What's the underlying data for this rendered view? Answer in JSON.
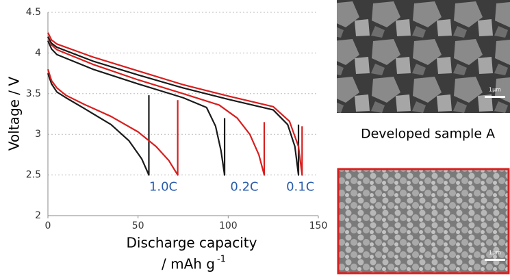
{
  "chart_data": {
    "type": "line",
    "y_label": "Voltage / V",
    "x_label": "Discharge capacity",
    "x_unit": "/ mAh g",
    "x_unit_superscript": "-1",
    "xlim": [
      0,
      150
    ],
    "xticks": [
      0,
      50,
      100,
      150
    ],
    "ylim": [
      2,
      4.5
    ],
    "yticks": [
      2,
      2.5,
      3,
      3.5,
      4,
      4.5
    ],
    "grid": true,
    "series": [
      {
        "color": "#1a1a1a",
        "x": [
          0,
          2,
          5,
          10,
          20,
          35,
          45,
          52,
          56,
          56
        ],
        "values": [
          3.75,
          3.62,
          3.52,
          3.45,
          3.32,
          3.12,
          2.92,
          2.7,
          2.5,
          3.48
        ]
      },
      {
        "color": "#d81e1e",
        "x": [
          0,
          2,
          5,
          10,
          20,
          35,
          50,
          60,
          67,
          72,
          72
        ],
        "values": [
          3.8,
          3.66,
          3.57,
          3.48,
          3.37,
          3.22,
          3.03,
          2.85,
          2.68,
          2.5,
          3.42
        ]
      },
      {
        "color": "#1a1a1a",
        "x": [
          0,
          2,
          5,
          25,
          50,
          75,
          88,
          93,
          96,
          98,
          98
        ],
        "values": [
          4.15,
          4.05,
          3.98,
          3.8,
          3.62,
          3.45,
          3.33,
          3.1,
          2.8,
          2.5,
          3.2
        ]
      },
      {
        "color": "#d81e1e",
        "x": [
          0,
          2,
          5,
          25,
          50,
          75,
          95,
          105,
          112,
          117,
          120,
          120
        ],
        "values": [
          4.2,
          4.1,
          4.04,
          3.86,
          3.67,
          3.5,
          3.36,
          3.2,
          3.0,
          2.75,
          2.5,
          3.15
        ]
      },
      {
        "color": "#1a1a1a",
        "x": [
          0,
          2,
          5,
          25,
          50,
          75,
          100,
          125,
          133,
          137,
          139,
          139
        ],
        "values": [
          4.2,
          4.12,
          4.07,
          3.9,
          3.73,
          3.57,
          3.43,
          3.3,
          3.12,
          2.85,
          2.5,
          3.12
        ]
      },
      {
        "color": "#d81e1e",
        "x": [
          0,
          2,
          5,
          25,
          50,
          75,
          100,
          125,
          134,
          139,
          141,
          141
        ],
        "values": [
          4.25,
          4.16,
          4.11,
          3.95,
          3.78,
          3.61,
          3.47,
          3.34,
          3.16,
          2.85,
          2.5,
          3.1
        ]
      }
    ],
    "annotations": [
      "1.0C",
      "0.2C",
      "0.1C"
    ],
    "annotation_color": "#2a5caa"
  },
  "images": {
    "caption": "Developed sample A",
    "scale_bar": "1µm"
  }
}
